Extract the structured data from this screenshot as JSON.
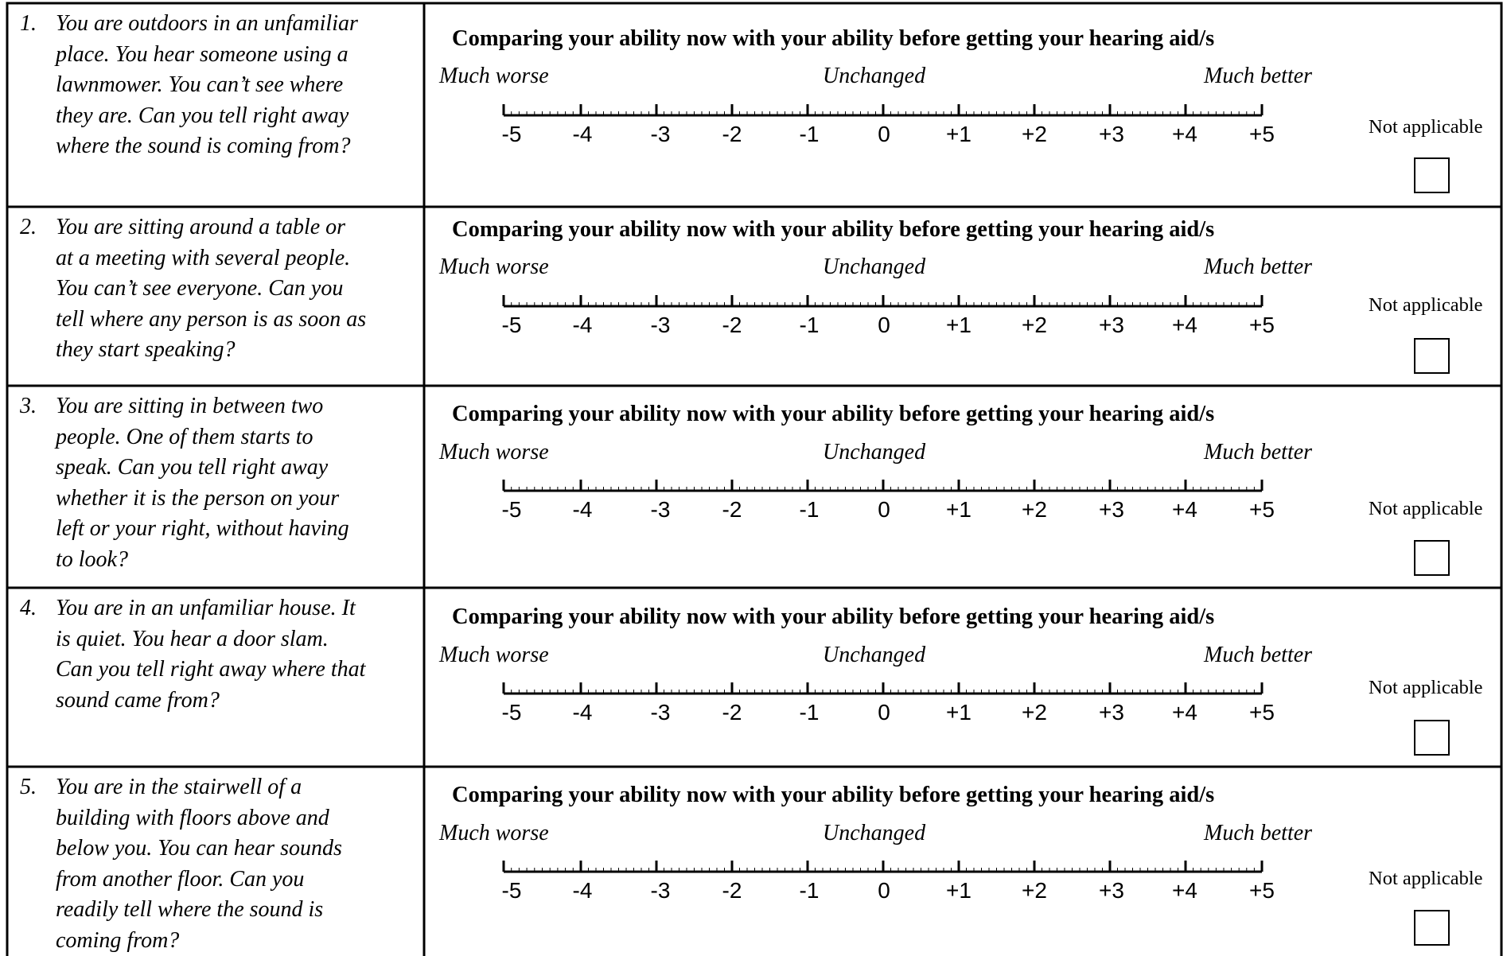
{
  "form": {
    "compare_heading": "Comparing your ability now with your ability before getting your hearing aid/s",
    "anchor_left": "Much worse",
    "anchor_center": "Unchanged",
    "anchor_right": "Much better",
    "na_label": "Not applicable",
    "scale": [
      "-5",
      "-4",
      "-3",
      "-2",
      "-1",
      "0",
      "+1",
      "+2",
      "+3",
      "+4",
      "+5"
    ],
    "questions": [
      {
        "number": "1.",
        "lines": [
          "You are outdoors in an unfamiliar",
          "place.  You hear someone using a",
          "lawnmower.  You can’t see where",
          "they are.  Can you tell right away",
          "where the sound is coming from?"
        ]
      },
      {
        "number": "2.",
        "lines": [
          "You are sitting around a table or",
          "at a meeting with several people.",
          "You can’t see everyone.  Can you",
          "tell where any person is as soon as",
          "they start speaking?"
        ]
      },
      {
        "number": "3.",
        "lines": [
          "You are sitting in between two",
          "people.  One of them starts to",
          "speak.  Can you tell right away",
          "whether it is the person on your",
          "left or your right, without having",
          "to look?"
        ]
      },
      {
        "number": "4.",
        "lines": [
          "You are in an unfamiliar house.  It",
          "is quiet.  You hear a door slam.",
          "Can you tell right away where that",
          "sound came from?"
        ]
      },
      {
        "number": "5.",
        "lines": [
          "You are in the stairwell of a",
          "building with floors above and",
          "below you.  You can hear sounds",
          "from another floor.  Can you",
          "readily tell where the sound is",
          "coming from?"
        ]
      }
    ]
  }
}
